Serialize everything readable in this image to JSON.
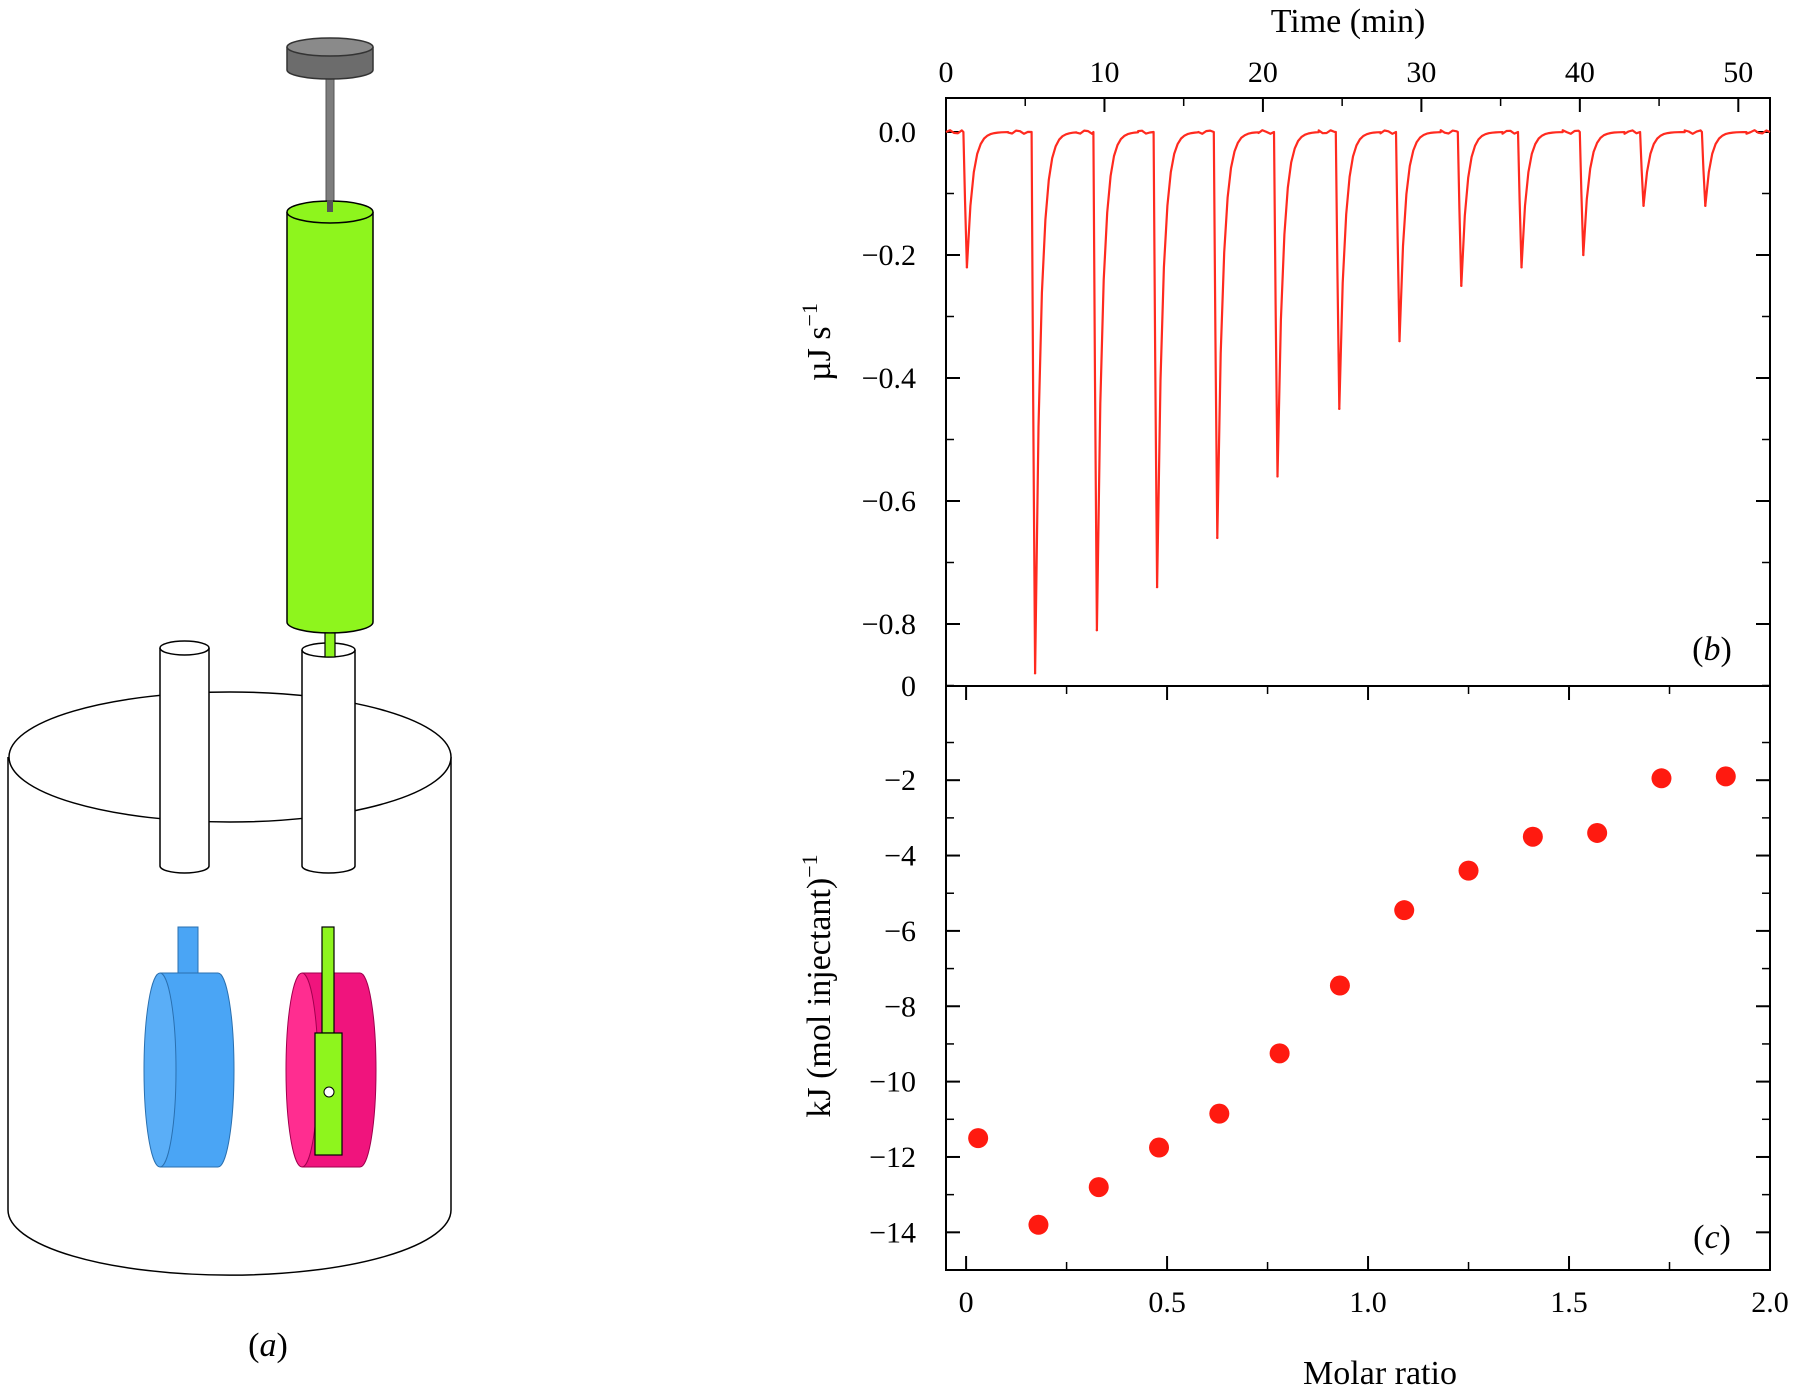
{
  "figure": {
    "label_a": "a",
    "label_b": "b",
    "label_c": "c"
  },
  "apparatus": {
    "colors": {
      "syringe": "#8ef51d",
      "plunger_cap": "#7d7d7d",
      "reference_cell": "#4aa5f5",
      "sample_cell": "#f0147d",
      "outline": "#000000"
    }
  },
  "chart_data": [
    {
      "id": "b",
      "type": "line",
      "xlabel": "Time (min)",
      "ylabel": "µJ s",
      "ylabel_superscript": "−1",
      "x_axis_position": "top",
      "xlim": [
        0,
        52
      ],
      "ylim": [
        -0.9,
        0.02
      ],
      "xticks": [
        0,
        10,
        20,
        30,
        40,
        50
      ],
      "xtick_labels": [
        "0",
        "10",
        "20",
        "30",
        "40",
        "50"
      ],
      "yticks": [
        0.0,
        -0.2,
        -0.4,
        -0.6,
        -0.8
      ],
      "ytick_labels": [
        "0.0",
        "−0.2",
        "−0.4",
        "−0.6",
        "−0.8"
      ],
      "ytick_bottom_label": "0",
      "color": "#ff2a1f",
      "injections": [
        {
          "t": 1.1,
          "peak": -0.22
        },
        {
          "t": 5.4,
          "peak": -0.88
        },
        {
          "t": 9.3,
          "peak": -0.81
        },
        {
          "t": 13.1,
          "peak": -0.74
        },
        {
          "t": 16.9,
          "peak": -0.66
        },
        {
          "t": 20.7,
          "peak": -0.56
        },
        {
          "t": 24.6,
          "peak": -0.45
        },
        {
          "t": 28.4,
          "peak": -0.34
        },
        {
          "t": 32.3,
          "peak": -0.25
        },
        {
          "t": 36.1,
          "peak": -0.22
        },
        {
          "t": 40.0,
          "peak": -0.2
        },
        {
          "t": 43.8,
          "peak": -0.12
        },
        {
          "t": 47.7,
          "peak": -0.12
        }
      ]
    },
    {
      "id": "c",
      "type": "scatter",
      "xlabel": "Molar ratio",
      "ylabel": "kJ (mol injectant)",
      "ylabel_superscript": "−1",
      "xlim": [
        -0.05,
        2.0
      ],
      "ylim": [
        -15.0,
        0.5
      ],
      "xticks": [
        0,
        0.5,
        1.0,
        1.5,
        2.0
      ],
      "xtick_labels": [
        "0",
        "0.5",
        "1.0",
        "1.5",
        "2.0"
      ],
      "yticks": [
        -2,
        -4,
        -6,
        -8,
        -10,
        -12,
        -14
      ],
      "ytick_labels": [
        "−2",
        "−4",
        "−6",
        "−8",
        "−10",
        "−12",
        "−14"
      ],
      "color": "#ff1a10",
      "x": [
        0.03,
        0.18,
        0.33,
        0.48,
        0.63,
        0.78,
        0.93,
        1.09,
        1.25,
        1.41,
        1.57,
        1.73,
        1.89
      ],
      "y": [
        -11.5,
        -13.8,
        -12.8,
        -11.75,
        -10.85,
        -9.25,
        -7.45,
        -5.45,
        -4.4,
        -3.5,
        -3.4,
        -1.95,
        -1.9
      ]
    }
  ]
}
